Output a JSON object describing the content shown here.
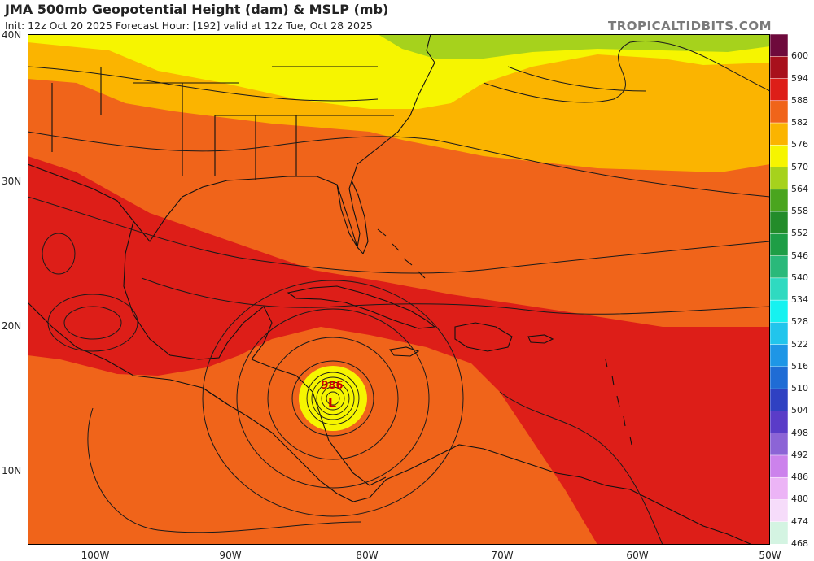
{
  "header": {
    "title": "JMA 500mb Geopotential Height (dam) & MSLP (mb)",
    "subtitle": "Init: 12z Oct 20 2025   Forecast Hour: [192]   valid at 12z Tue, Oct 28 2025",
    "brand": "TROPICALTIDBITS.COM"
  },
  "axes": {
    "lat_labels": [
      "40N",
      "30N",
      "20N",
      "10N"
    ],
    "lon_labels": [
      "100W",
      "90W",
      "80W",
      "70W",
      "60W",
      "50W"
    ]
  },
  "colorbar": {
    "labels": [
      "600",
      "594",
      "588",
      "582",
      "576",
      "570",
      "564",
      "558",
      "552",
      "546",
      "540",
      "534",
      "528",
      "522",
      "516",
      "510",
      "504",
      "498",
      "492",
      "486",
      "480",
      "474",
      "468"
    ],
    "colors": [
      "#6e0a3c",
      "#a8101c",
      "#dd1e18",
      "#f0641a",
      "#fbb400",
      "#f6f500",
      "#a6d21c",
      "#4aa51e",
      "#238c2a",
      "#1e9e46",
      "#2ab97a",
      "#2fdac0",
      "#16f2f0",
      "#21c5ec",
      "#1e96e6",
      "#1f6cd5",
      "#2f41c2",
      "#5a3cc8",
      "#8c64d6",
      "#cc82ec",
      "#ecb4f6",
      "#f6dcfa",
      "#d4f4e2"
    ]
  },
  "map_colors": {
    "h588": "#dd1e18",
    "h582": "#f0641a",
    "h576": "#fbb400",
    "h570": "#f6f500",
    "h564": "#a6d21c",
    "land_outline": "#111111",
    "isobar": "#1a1a1a"
  },
  "low": {
    "label": "986",
    "symbol": "L",
    "color": "#cc0000"
  }
}
